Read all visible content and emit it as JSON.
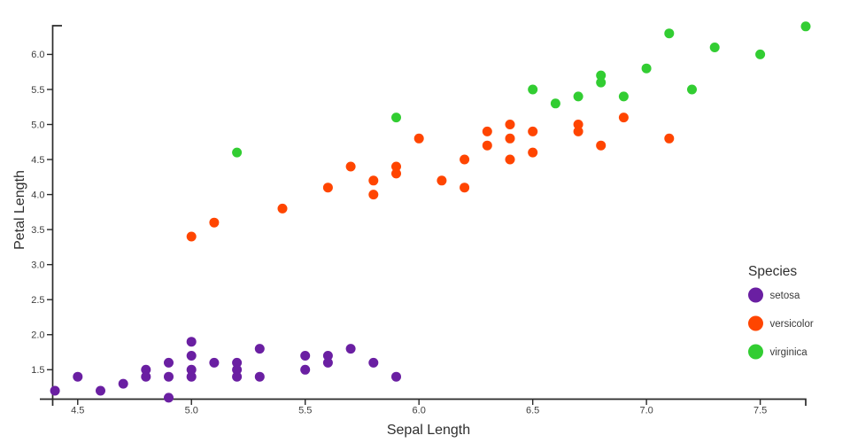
{
  "chart_data": {
    "type": "scatter",
    "title": "",
    "xlabel": "Sepal Length",
    "ylabel": "Petal Length",
    "xlim": [
      4.39,
      7.7
    ],
    "ylim": [
      1.08,
      6.41
    ],
    "x_tick_labels": [
      "4.5",
      "5.0",
      "5.5",
      "6.0",
      "6.5",
      "7.0",
      "7.5"
    ],
    "y_tick_labels": [
      "1.5",
      "2.0",
      "2.5",
      "3.0",
      "3.5",
      "4.0",
      "4.5",
      "5.0",
      "5.5",
      "6.0"
    ],
    "grid": false,
    "legend": {
      "title": "Species",
      "position": "right-inside"
    },
    "series": [
      {
        "name": "setosa",
        "color": "#6a1fa2",
        "points": [
          [
            4.4,
            1.2
          ],
          [
            4.5,
            1.4
          ],
          [
            4.6,
            1.2
          ],
          [
            4.7,
            1.3
          ],
          [
            4.8,
            1.5
          ],
          [
            4.8,
            1.4
          ],
          [
            4.9,
            1.6
          ],
          [
            4.9,
            1.4
          ],
          [
            4.9,
            1.1
          ],
          [
            5.0,
            1.9
          ],
          [
            5.0,
            1.7
          ],
          [
            5.0,
            1.5
          ],
          [
            5.0,
            1.4
          ],
          [
            5.1,
            1.6
          ],
          [
            5.2,
            1.6
          ],
          [
            5.2,
            1.5
          ],
          [
            5.2,
            1.4
          ],
          [
            5.3,
            1.8
          ],
          [
            5.3,
            1.4
          ],
          [
            5.5,
            1.7
          ],
          [
            5.5,
            1.5
          ],
          [
            5.6,
            1.7
          ],
          [
            5.6,
            1.6
          ],
          [
            5.7,
            1.8
          ],
          [
            5.8,
            1.6
          ],
          [
            5.9,
            1.4
          ]
        ]
      },
      {
        "name": "versicolor",
        "color": "#ff4500",
        "points": [
          [
            5.0,
            3.4
          ],
          [
            5.1,
            3.6
          ],
          [
            5.4,
            3.8
          ],
          [
            5.6,
            4.1
          ],
          [
            5.7,
            4.4
          ],
          [
            5.8,
            4.2
          ],
          [
            5.8,
            4.0
          ],
          [
            5.9,
            4.4
          ],
          [
            5.9,
            4.3
          ],
          [
            6.0,
            4.8
          ],
          [
            6.1,
            4.2
          ],
          [
            6.2,
            4.5
          ],
          [
            6.2,
            4.1
          ],
          [
            6.3,
            4.9
          ],
          [
            6.3,
            4.7
          ],
          [
            6.4,
            5.0
          ],
          [
            6.4,
            4.8
          ],
          [
            6.4,
            4.5
          ],
          [
            6.5,
            4.9
          ],
          [
            6.5,
            4.6
          ],
          [
            6.7,
            5.0
          ],
          [
            6.7,
            4.9
          ],
          [
            6.8,
            4.7
          ],
          [
            6.9,
            5.1
          ],
          [
            7.1,
            4.8
          ]
        ]
      },
      {
        "name": "virginica",
        "color": "#32cd32",
        "points": [
          [
            5.2,
            4.6
          ],
          [
            5.9,
            5.1
          ],
          [
            6.5,
            5.5
          ],
          [
            6.6,
            5.3
          ],
          [
            6.7,
            5.4
          ],
          [
            6.8,
            5.7
          ],
          [
            6.8,
            5.6
          ],
          [
            6.9,
            5.4
          ],
          [
            7.0,
            5.8
          ],
          [
            7.1,
            6.3
          ],
          [
            7.2,
            5.5
          ],
          [
            7.3,
            6.1
          ],
          [
            7.5,
            6.0
          ],
          [
            7.7,
            6.4
          ]
        ]
      }
    ]
  },
  "colors": {
    "axis": "#2a2a2a",
    "tick_label": "#3f3f3f",
    "title_text": "#2f2f2f",
    "legend_label": "#3a3a3a"
  }
}
